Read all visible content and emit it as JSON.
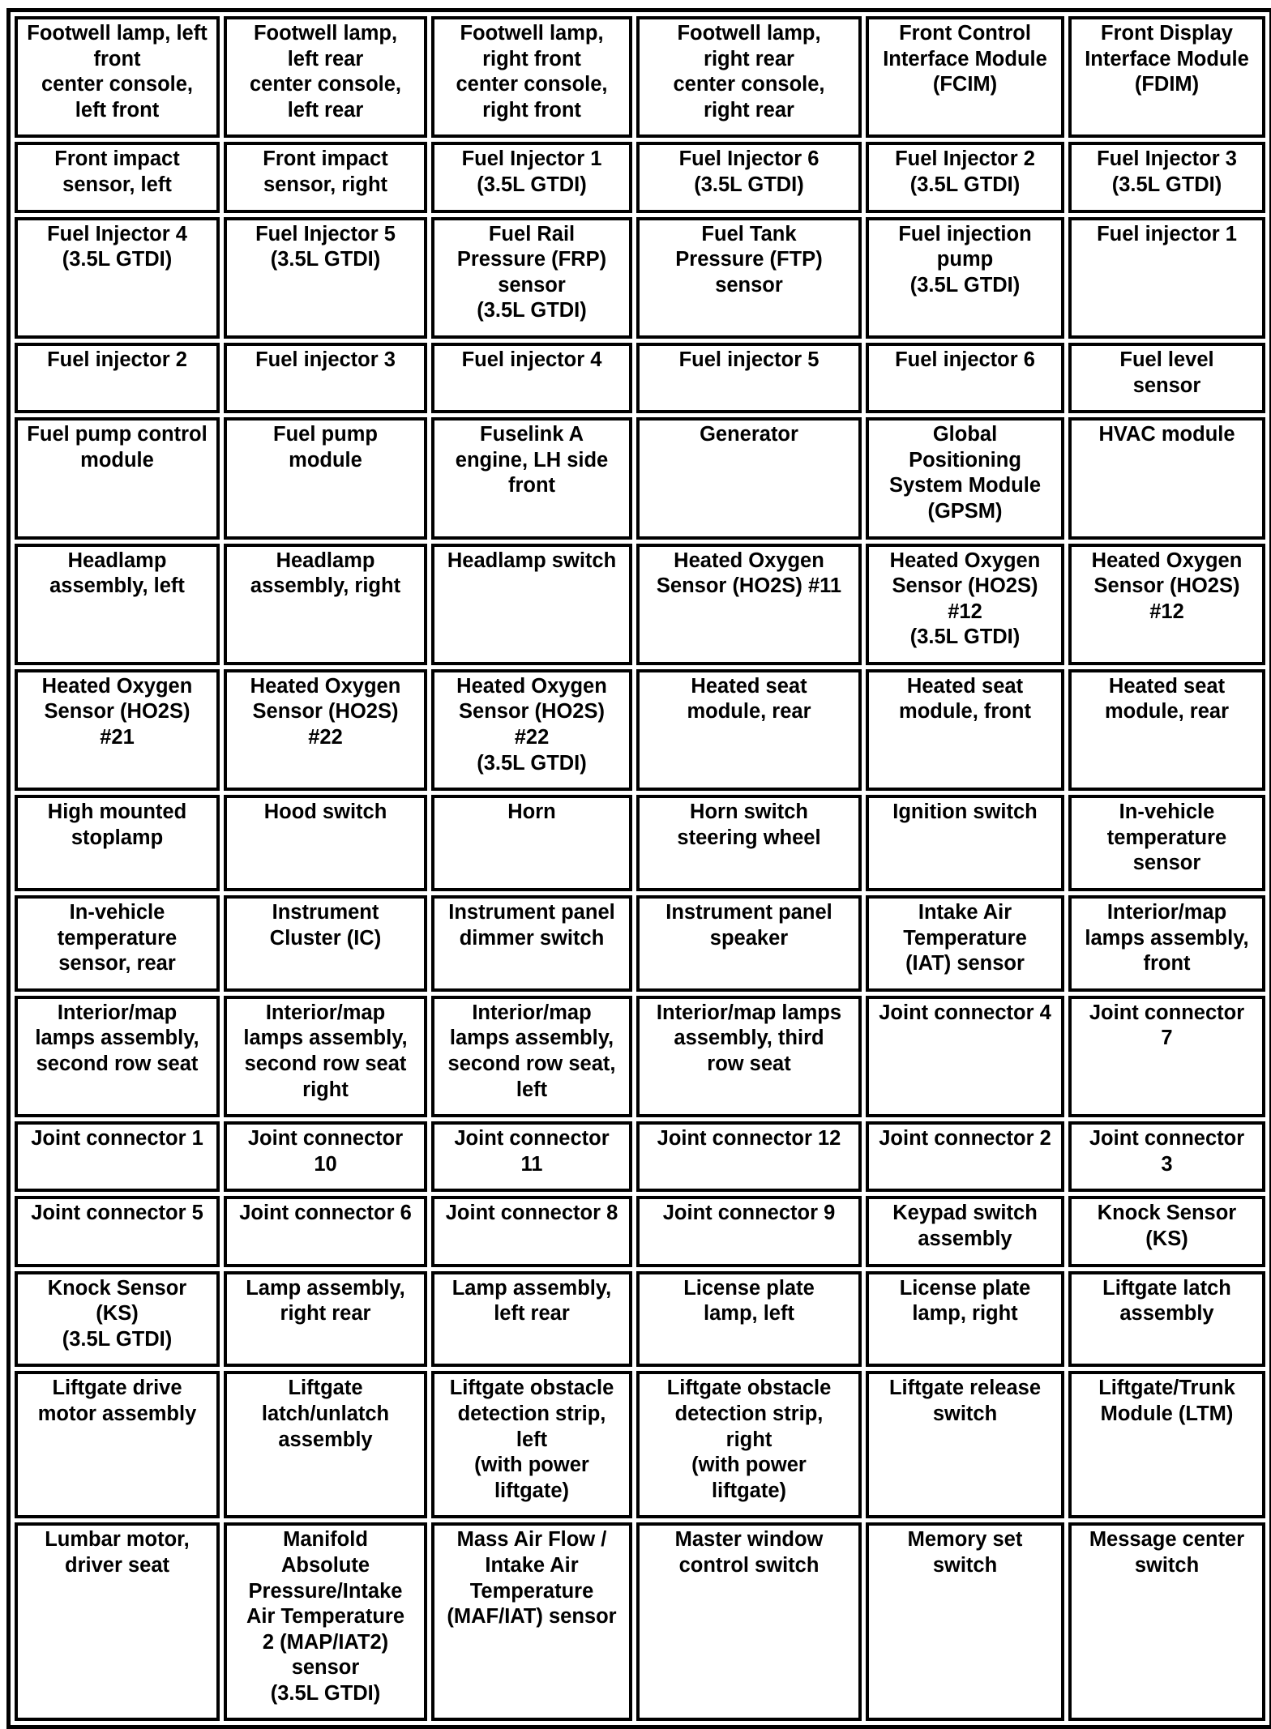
{
  "rows": [
    [
      "Footwell lamp, left\nfront\ncenter console,\nleft front",
      "Footwell lamp,\nleft rear\ncenter console,\nleft rear",
      "Footwell lamp,\nright front\ncenter console,\nright front",
      "Footwell lamp,\nright rear\ncenter console,\nright rear",
      "Front Control\nInterface Module\n(FCIM)",
      "Front Display\nInterface Module\n(FDIM)"
    ],
    [
      "Front impact\nsensor, left",
      "Front impact\nsensor, right",
      "Fuel Injector 1\n(3.5L GTDI)",
      "Fuel Injector 6\n(3.5L GTDI)",
      "Fuel Injector 2\n(3.5L GTDI)",
      "Fuel Injector 3\n(3.5L GTDI)"
    ],
    [
      "Fuel Injector 4\n(3.5L GTDI)",
      "Fuel Injector 5\n(3.5L GTDI)",
      "Fuel Rail\nPressure (FRP)\nsensor\n(3.5L GTDI)",
      "Fuel Tank\nPressure (FTP)\nsensor",
      "Fuel injection\npump\n(3.5L GTDI)",
      "Fuel injector 1"
    ],
    [
      "Fuel injector 2",
      "Fuel injector 3",
      "Fuel injector 4",
      "Fuel injector 5",
      "Fuel injector 6",
      "Fuel level\nsensor"
    ],
    [
      "Fuel pump control\nmodule",
      "Fuel pump\nmodule",
      "Fuselink A\nengine, LH side\nfront",
      "Generator",
      "Global\nPositioning\nSystem Module\n(GPSM)",
      "HVAC module"
    ],
    [
      "Headlamp\nassembly, left",
      "Headlamp\nassembly, right",
      "Headlamp switch",
      "Heated Oxygen\nSensor (HO2S) #11",
      "Heated Oxygen\nSensor (HO2S)\n#12\n(3.5L GTDI)",
      "Heated Oxygen\nSensor (HO2S)\n#12"
    ],
    [
      "Heated Oxygen\nSensor (HO2S)\n#21",
      "Heated Oxygen\nSensor (HO2S)\n#22",
      "Heated Oxygen\nSensor (HO2S)\n#22\n(3.5L GTDI)",
      "Heated seat\nmodule, rear",
      "Heated seat\nmodule, front",
      "Heated seat\nmodule, rear"
    ],
    [
      "High mounted\nstoplamp",
      "Hood switch",
      "Horn",
      "Horn switch\nsteering wheel",
      "Ignition switch",
      "In-vehicle\ntemperature\nsensor"
    ],
    [
      "In-vehicle\ntemperature\nsensor, rear",
      "Instrument\nCluster (IC)",
      "Instrument panel\ndimmer switch",
      "Instrument panel\nspeaker",
      "Intake Air\nTemperature\n(IAT) sensor",
      "Interior/map\nlamps assembly,\nfront"
    ],
    [
      "Interior/map\nlamps assembly,\nsecond row seat",
      "Interior/map\nlamps assembly,\nsecond row seat\nright",
      "Interior/map\nlamps assembly,\nsecond row seat,\nleft",
      "Interior/map lamps\nassembly, third\nrow seat",
      "Joint connector 4",
      "Joint connector\n7"
    ],
    [
      "Joint connector 1",
      "Joint connector\n10",
      "Joint connector\n11",
      "Joint connector 12",
      "Joint connector 2",
      "Joint connector\n3"
    ],
    [
      "Joint connector 5",
      "Joint connector 6",
      "Joint connector 8",
      "Joint connector 9",
      "Keypad switch\nassembly",
      "Knock Sensor\n(KS)"
    ],
    [
      "Knock Sensor\n(KS)\n(3.5L GTDI)",
      "Lamp assembly,\nright rear",
      "Lamp assembly,\nleft rear",
      "License plate\nlamp, left",
      "License plate\nlamp, right",
      "Liftgate latch\nassembly"
    ],
    [
      "Liftgate drive\nmotor assembly",
      "Liftgate\nlatch/unlatch\nassembly",
      "Liftgate obstacle\ndetection strip,\nleft\n(with power\nliftgate)",
      "Liftgate obstacle\ndetection strip,\nright\n(with power\nliftgate)",
      "Liftgate release\nswitch",
      "Liftgate/Trunk\nModule (LTM)"
    ],
    [
      "Lumbar motor,\ndriver seat",
      "Manifold\nAbsolute\nPressure/Intake\nAir Temperature\n2 (MAP/IAT2)\nsensor\n(3.5L GTDI)",
      "Mass Air Flow /\nIntake Air\nTemperature\n(MAF/IAT) sensor",
      "Master window\ncontrol switch",
      "Memory set\nswitch",
      "Message center\nswitch"
    ]
  ]
}
